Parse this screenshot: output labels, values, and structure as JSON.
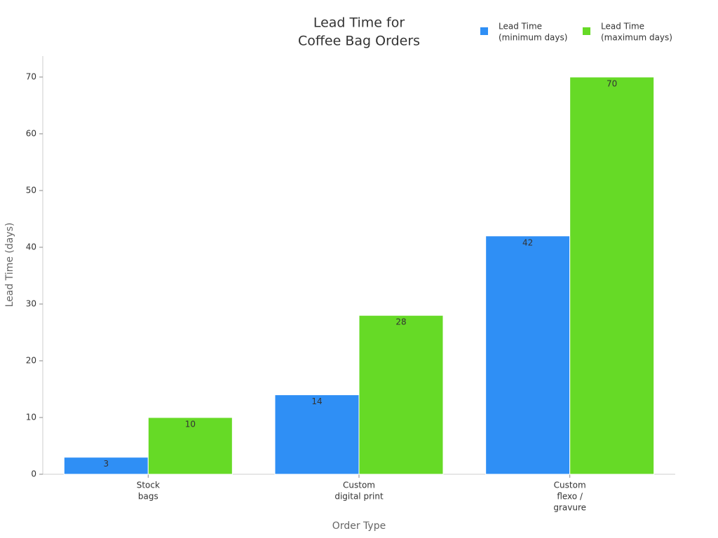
{
  "chart_data": {
    "type": "bar",
    "title": [
      "Lead Time for",
      "Coffee Bag Orders"
    ],
    "x_label": "Order Type",
    "y_label": "Lead Time (days)",
    "categories": [
      [
        "Stock",
        "bags"
      ],
      [
        "Custom",
        "digital print"
      ],
      [
        "Custom",
        "flexo /",
        "gravure"
      ]
    ],
    "series": [
      {
        "name": [
          "Lead Time",
          "(minimum days)"
        ],
        "color": "#2f8ff5",
        "values": [
          3,
          14,
          42
        ]
      },
      {
        "name": [
          "Lead Time",
          "(maximum days)"
        ],
        "color": "#66da26",
        "values": [
          10,
          28,
          70
        ]
      }
    ],
    "ylim": [
      0,
      73.7
    ],
    "yticks": [
      0,
      10,
      20,
      30,
      40,
      50,
      60,
      70
    ],
    "legend": "top-right",
    "grid": false
  }
}
